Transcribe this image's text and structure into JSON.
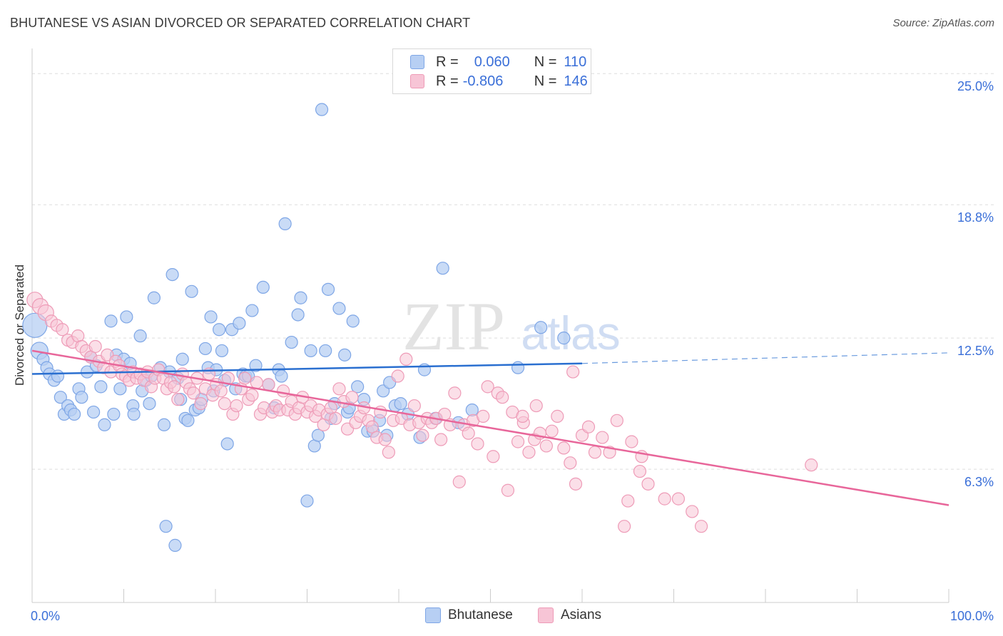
{
  "title": "BHUTANESE VS ASIAN DIVORCED OR SEPARATED CORRELATION CHART",
  "source": "Source: ZipAtlas.com",
  "ylabel": "Divorced or Separated",
  "watermark": {
    "zip": "ZIP",
    "atlas": "atlas"
  },
  "legend": {
    "bhutanese": {
      "r_label": "R =",
      "r_value": "0.060",
      "n_label": "N =",
      "n_value": "110"
    },
    "asians": {
      "r_label": "R =",
      "r_value": "-0.806",
      "n_label": "N =",
      "n_value": "146"
    }
  },
  "bottom_legend": {
    "bhutanese": "Bhutanese",
    "asians": "Asians"
  },
  "colors": {
    "blue_fill": "#b7cff3",
    "blue_stroke": "#7ea6e6",
    "blue_line": "#2a6fd0",
    "pink_fill": "#f7c5d6",
    "pink_stroke": "#ee9bb7",
    "pink_line": "#e8669a",
    "axis_text": "#3a6fd8",
    "grid": "#dddddd"
  },
  "chart_data": {
    "type": "scatter",
    "xlim": [
      0,
      100
    ],
    "ylim": [
      0,
      25
    ],
    "x_tick_labels": [
      "0.0%",
      "100.0%"
    ],
    "y_ticks": [
      6.3,
      12.5,
      18.8,
      25.0
    ],
    "y_tick_labels": [
      "6.3%",
      "12.5%",
      "18.8%",
      "25.0%"
    ],
    "grid": "horizontal dashed",
    "series": [
      {
        "name": "Bhutanese",
        "color": "#7ea6e6",
        "trend": {
          "x": [
            0,
            60
          ],
          "y": [
            10.8,
            11.3
          ],
          "dashed_to": [
            100,
            11.8
          ]
        },
        "points": [
          [
            0.3,
            13.1
          ],
          [
            0.8,
            11.9
          ],
          [
            1.2,
            11.5
          ],
          [
            1.6,
            11.1
          ],
          [
            1.9,
            10.8
          ],
          [
            2.4,
            10.5
          ],
          [
            2.8,
            10.7
          ],
          [
            3.1,
            9.7
          ],
          [
            3.5,
            8.9
          ],
          [
            3.9,
            9.3
          ],
          [
            4.2,
            9.1
          ],
          [
            4.6,
            8.9
          ],
          [
            5.1,
            10.1
          ],
          [
            5.4,
            9.7
          ],
          [
            6.0,
            10.9
          ],
          [
            6.4,
            11.6
          ],
          [
            6.7,
            9.0
          ],
          [
            7.0,
            11.2
          ],
          [
            7.5,
            10.2
          ],
          [
            7.9,
            8.4
          ],
          [
            8.6,
            13.3
          ],
          [
            8.9,
            8.9
          ],
          [
            9.2,
            11.7
          ],
          [
            9.6,
            10.1
          ],
          [
            10.0,
            11.5
          ],
          [
            10.3,
            13.5
          ],
          [
            10.7,
            11.3
          ],
          [
            11.0,
            9.3
          ],
          [
            11.1,
            8.9
          ],
          [
            11.8,
            12.6
          ],
          [
            12.0,
            10.0
          ],
          [
            12.4,
            10.5
          ],
          [
            12.8,
            9.4
          ],
          [
            13.0,
            10.7
          ],
          [
            13.3,
            14.4
          ],
          [
            14.0,
            11.1
          ],
          [
            14.4,
            8.4
          ],
          [
            14.6,
            3.6
          ],
          [
            15.0,
            10.9
          ],
          [
            15.3,
            15.5
          ],
          [
            15.6,
            2.7
          ],
          [
            15.9,
            10.6
          ],
          [
            16.2,
            9.6
          ],
          [
            16.4,
            11.5
          ],
          [
            16.7,
            8.7
          ],
          [
            17.0,
            8.6
          ],
          [
            17.4,
            14.7
          ],
          [
            17.8,
            9.1
          ],
          [
            18.2,
            9.2
          ],
          [
            18.5,
            9.6
          ],
          [
            18.9,
            12.0
          ],
          [
            19.2,
            11.1
          ],
          [
            19.5,
            13.5
          ],
          [
            19.8,
            10.0
          ],
          [
            20.1,
            11.0
          ],
          [
            20.4,
            12.9
          ],
          [
            20.7,
            11.9
          ],
          [
            21.0,
            10.5
          ],
          [
            21.3,
            7.5
          ],
          [
            21.8,
            12.9
          ],
          [
            22.2,
            10.1
          ],
          [
            22.6,
            13.2
          ],
          [
            23.0,
            10.8
          ],
          [
            23.3,
            10.7
          ],
          [
            23.6,
            10.7
          ],
          [
            24.0,
            13.8
          ],
          [
            24.4,
            11.2
          ],
          [
            25.2,
            14.9
          ],
          [
            25.8,
            10.3
          ],
          [
            26.4,
            9.2
          ],
          [
            26.9,
            11.0
          ],
          [
            27.2,
            10.7
          ],
          [
            27.6,
            17.9
          ],
          [
            28.3,
            12.3
          ],
          [
            29.0,
            13.6
          ],
          [
            29.3,
            14.4
          ],
          [
            30.0,
            4.8
          ],
          [
            30.4,
            11.9
          ],
          [
            30.8,
            7.4
          ],
          [
            31.2,
            7.9
          ],
          [
            31.6,
            23.3
          ],
          [
            32.0,
            11.9
          ],
          [
            32.3,
            14.8
          ],
          [
            32.6,
            8.7
          ],
          [
            33.0,
            9.4
          ],
          [
            33.5,
            13.9
          ],
          [
            34.1,
            11.7
          ],
          [
            34.4,
            9.0
          ],
          [
            34.6,
            9.2
          ],
          [
            35.0,
            13.3
          ],
          [
            35.5,
            10.2
          ],
          [
            36.2,
            9.6
          ],
          [
            36.6,
            8.1
          ],
          [
            37.2,
            8.1
          ],
          [
            37.9,
            8.6
          ],
          [
            38.3,
            10.0
          ],
          [
            38.7,
            7.9
          ],
          [
            39.0,
            10.4
          ],
          [
            39.6,
            9.3
          ],
          [
            40.2,
            9.4
          ],
          [
            42.3,
            7.8
          ],
          [
            42.8,
            11.0
          ],
          [
            44.0,
            8.7
          ],
          [
            44.8,
            15.8
          ],
          [
            53.0,
            11.1
          ],
          [
            58.0,
            12.5
          ],
          [
            55.5,
            13.0
          ],
          [
            48.0,
            9.1
          ],
          [
            46.5,
            8.5
          ],
          [
            41.0,
            8.9
          ]
        ]
      },
      {
        "name": "Asians",
        "color": "#ee9bb7",
        "trend": {
          "x": [
            0,
            100
          ],
          "y": [
            11.9,
            4.6
          ]
        },
        "points": [
          [
            0.3,
            14.3
          ],
          [
            0.9,
            14.0
          ],
          [
            1.5,
            13.7
          ],
          [
            2.1,
            13.3
          ],
          [
            2.7,
            13.1
          ],
          [
            3.3,
            12.9
          ],
          [
            3.9,
            12.4
          ],
          [
            4.4,
            12.3
          ],
          [
            5.0,
            12.6
          ],
          [
            5.4,
            12.1
          ],
          [
            5.9,
            11.9
          ],
          [
            6.4,
            11.6
          ],
          [
            6.9,
            12.1
          ],
          [
            7.3,
            11.4
          ],
          [
            7.8,
            11.1
          ],
          [
            8.2,
            11.7
          ],
          [
            8.6,
            10.9
          ],
          [
            9.1,
            11.4
          ],
          [
            9.5,
            11.2
          ],
          [
            9.8,
            10.8
          ],
          [
            10.2,
            10.7
          ],
          [
            10.6,
            10.5
          ],
          [
            11.0,
            10.9
          ],
          [
            11.4,
            10.6
          ],
          [
            11.8,
            10.8
          ],
          [
            12.2,
            10.5
          ],
          [
            12.6,
            10.9
          ],
          [
            13.0,
            10.2
          ],
          [
            13.4,
            10.6
          ],
          [
            13.8,
            11.0
          ],
          [
            14.3,
            10.6
          ],
          [
            14.7,
            10.1
          ],
          [
            15.1,
            10.4
          ],
          [
            15.5,
            10.2
          ],
          [
            15.9,
            9.6
          ],
          [
            16.4,
            10.8
          ],
          [
            16.8,
            10.4
          ],
          [
            17.2,
            10.1
          ],
          [
            17.6,
            9.9
          ],
          [
            18.0,
            10.6
          ],
          [
            18.4,
            9.4
          ],
          [
            18.9,
            10.1
          ],
          [
            19.3,
            10.8
          ],
          [
            19.7,
            9.8
          ],
          [
            20.1,
            10.3
          ],
          [
            20.6,
            10.0
          ],
          [
            21.0,
            9.4
          ],
          [
            21.4,
            10.6
          ],
          [
            21.9,
            8.9
          ],
          [
            22.3,
            9.3
          ],
          [
            22.8,
            10.1
          ],
          [
            23.2,
            10.6
          ],
          [
            23.6,
            9.6
          ],
          [
            24.0,
            9.8
          ],
          [
            24.5,
            10.4
          ],
          [
            24.9,
            8.9
          ],
          [
            25.3,
            9.2
          ],
          [
            25.8,
            10.3
          ],
          [
            26.2,
            9.0
          ],
          [
            26.6,
            9.3
          ],
          [
            27.0,
            9.1
          ],
          [
            27.4,
            10.0
          ],
          [
            27.9,
            9.1
          ],
          [
            28.3,
            9.5
          ],
          [
            28.7,
            8.9
          ],
          [
            29.1,
            9.2
          ],
          [
            29.5,
            9.7
          ],
          [
            30.0,
            9.0
          ],
          [
            30.4,
            9.3
          ],
          [
            30.9,
            8.8
          ],
          [
            31.3,
            9.1
          ],
          [
            31.8,
            8.4
          ],
          [
            32.2,
            8.9
          ],
          [
            32.6,
            9.2
          ],
          [
            33.1,
            8.7
          ],
          [
            33.5,
            10.1
          ],
          [
            34.0,
            9.5
          ],
          [
            34.4,
            8.2
          ],
          [
            34.9,
            9.7
          ],
          [
            35.3,
            8.5
          ],
          [
            35.8,
            8.8
          ],
          [
            36.2,
            9.2
          ],
          [
            36.7,
            8.6
          ],
          [
            37.1,
            8.3
          ],
          [
            37.6,
            7.8
          ],
          [
            38.0,
            9.0
          ],
          [
            38.5,
            7.7
          ],
          [
            38.9,
            7.1
          ],
          [
            39.4,
            8.6
          ],
          [
            39.9,
            10.7
          ],
          [
            40.3,
            8.7
          ],
          [
            40.8,
            11.5
          ],
          [
            41.2,
            8.4
          ],
          [
            41.7,
            9.3
          ],
          [
            42.2,
            8.5
          ],
          [
            42.6,
            7.9
          ],
          [
            43.1,
            8.7
          ],
          [
            43.6,
            8.5
          ],
          [
            44.1,
            8.7
          ],
          [
            44.6,
            7.7
          ],
          [
            45.0,
            8.9
          ],
          [
            45.6,
            8.4
          ],
          [
            46.1,
            9.9
          ],
          [
            46.6,
            5.7
          ],
          [
            47.1,
            8.4
          ],
          [
            47.6,
            8.0
          ],
          [
            48.1,
            8.6
          ],
          [
            48.6,
            7.5
          ],
          [
            49.2,
            8.8
          ],
          [
            49.7,
            10.2
          ],
          [
            50.3,
            6.9
          ],
          [
            50.8,
            9.9
          ],
          [
            51.3,
            9.7
          ],
          [
            51.9,
            5.3
          ],
          [
            52.4,
            9.0
          ],
          [
            53.0,
            7.6
          ],
          [
            53.6,
            8.5
          ],
          [
            54.2,
            7.1
          ],
          [
            54.8,
            7.7
          ],
          [
            55.4,
            8.0
          ],
          [
            56.1,
            7.4
          ],
          [
            56.7,
            8.1
          ],
          [
            57.3,
            8.8
          ],
          [
            58.0,
            7.3
          ],
          [
            58.7,
            6.6
          ],
          [
            59.3,
            5.6
          ],
          [
            60.0,
            7.9
          ],
          [
            60.7,
            8.3
          ],
          [
            61.4,
            7.1
          ],
          [
            62.2,
            7.8
          ],
          [
            63.0,
            7.1
          ],
          [
            63.8,
            8.6
          ],
          [
            64.6,
            3.6
          ],
          [
            65.4,
            7.6
          ],
          [
            66.3,
            6.2
          ],
          [
            67.2,
            5.6
          ],
          [
            69.0,
            4.9
          ],
          [
            70.5,
            4.9
          ],
          [
            73.0,
            3.6
          ],
          [
            85.0,
            6.5
          ],
          [
            72.0,
            4.3
          ],
          [
            65.0,
            4.8
          ],
          [
            66.5,
            6.9
          ],
          [
            59.0,
            10.9
          ],
          [
            55.0,
            9.3
          ],
          [
            53.5,
            8.8
          ]
        ]
      }
    ]
  }
}
